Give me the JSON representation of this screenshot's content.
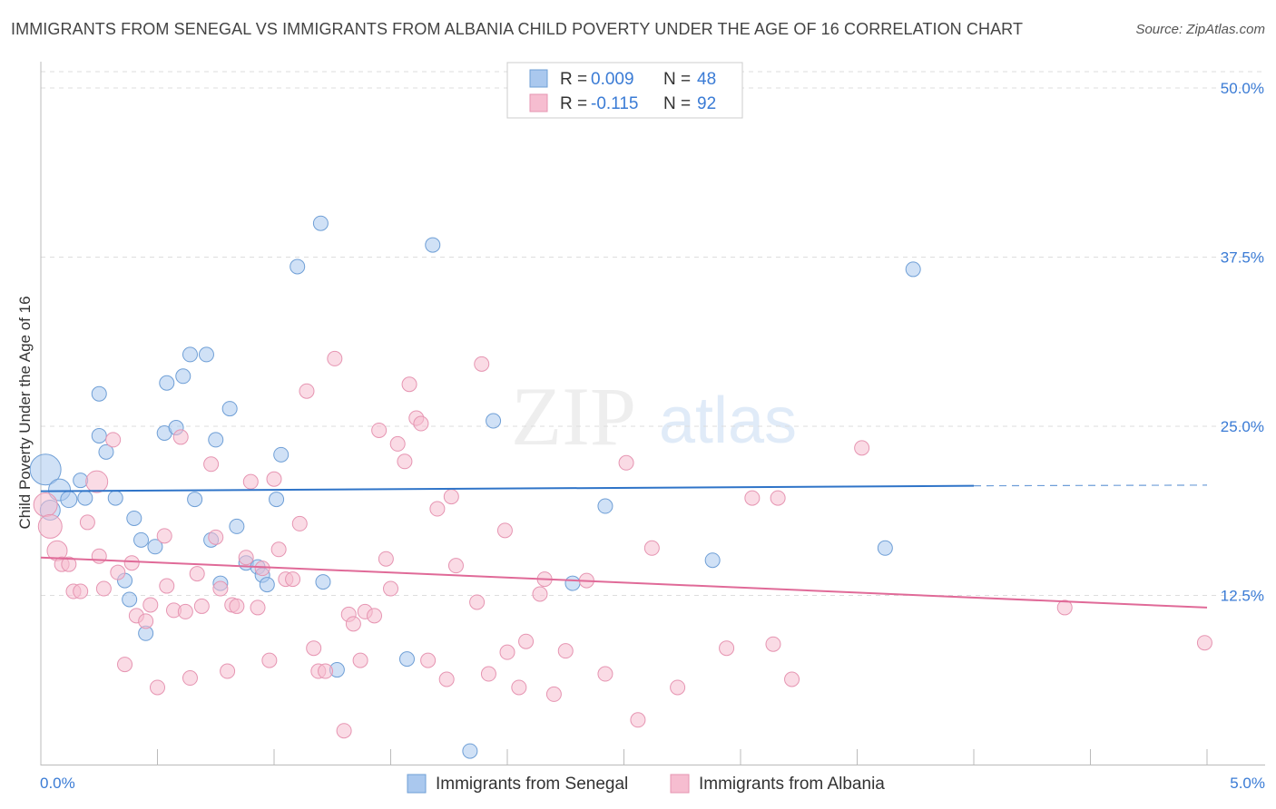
{
  "title": "IMMIGRANTS FROM SENEGAL VS IMMIGRANTS FROM ALBANIA CHILD POVERTY UNDER THE AGE OF 16 CORRELATION CHART",
  "source": "Source: ZipAtlas.com",
  "watermark": {
    "zip": "ZIP",
    "atlas": "atlas"
  },
  "colors": {
    "senegal_fill": "#aac8ee",
    "senegal_stroke": "#6f9fd6",
    "senegal_line": "#2f74c8",
    "albania_fill": "#f6bdd0",
    "albania_stroke": "#e695b2",
    "albania_line": "#e06a98",
    "tick_text": "#3a7bd5",
    "grid": "#dddddd"
  },
  "legend": [
    {
      "r_label": "R = ",
      "r_value": "0.009",
      "n_label": "N = ",
      "n_value": "48"
    },
    {
      "r_label": "R = ",
      "r_value": "-0.115",
      "n_label": "N = ",
      "n_value": "92"
    }
  ],
  "bottom_legend": [
    "Immigrants from Senegal",
    "Immigrants from Albania"
  ],
  "chart_data": {
    "type": "scatter",
    "title": "IMMIGRANTS FROM SENEGAL VS IMMIGRANTS FROM ALBANIA CHILD POVERTY UNDER THE AGE OF 16 CORRELATION CHART",
    "xlabel": "",
    "ylabel": "Child Poverty Under the Age of 16",
    "xlim": [
      0,
      5.0
    ],
    "ylim": [
      0,
      52
    ],
    "x_tick_labels": [
      "0.0%",
      "5.0%"
    ],
    "y_ticks": [
      12.5,
      25.0,
      37.5,
      50.0
    ],
    "y_tick_labels": [
      "12.5%",
      "25.0%",
      "37.5%",
      "50.0%"
    ],
    "grid": true,
    "legend_position": "top-center",
    "series": [
      {
        "name": "Immigrants from Senegal",
        "r": 0.009,
        "n": 48,
        "trend": {
          "x0": 0.0,
          "y0": 20.2,
          "x1": 4.0,
          "y1": 20.6,
          "dashed_to": 5.0,
          "dashed_y": 20.65
        },
        "points": [
          [
            0.02,
            21.8,
            17
          ],
          [
            0.08,
            20.3,
            12
          ],
          [
            0.04,
            18.8,
            11
          ],
          [
            0.12,
            19.6,
            9
          ],
          [
            0.17,
            21.0,
            8
          ],
          [
            0.19,
            19.7,
            8
          ],
          [
            0.25,
            24.3,
            8
          ],
          [
            0.28,
            23.1,
            8
          ],
          [
            0.32,
            19.7,
            8
          ],
          [
            0.25,
            27.4,
            8
          ],
          [
            0.36,
            13.6,
            8
          ],
          [
            0.38,
            12.2,
            8
          ],
          [
            0.4,
            18.2,
            8
          ],
          [
            0.43,
            16.6,
            8
          ],
          [
            0.45,
            9.7,
            8
          ],
          [
            0.49,
            16.1,
            8
          ],
          [
            0.53,
            24.5,
            8
          ],
          [
            0.54,
            28.2,
            8
          ],
          [
            0.58,
            24.9,
            8
          ],
          [
            0.61,
            28.7,
            8
          ],
          [
            0.64,
            30.3,
            8
          ],
          [
            0.66,
            19.6,
            8
          ],
          [
            0.71,
            30.3,
            8
          ],
          [
            0.73,
            16.6,
            8
          ],
          [
            0.75,
            24.0,
            8
          ],
          [
            0.77,
            13.4,
            8
          ],
          [
            0.81,
            26.3,
            8
          ],
          [
            0.84,
            17.6,
            8
          ],
          [
            0.88,
            14.9,
            8
          ],
          [
            0.93,
            14.6,
            8
          ],
          [
            0.95,
            14.0,
            8
          ],
          [
            0.97,
            13.3,
            8
          ],
          [
            1.01,
            19.6,
            8
          ],
          [
            1.03,
            22.9,
            8
          ],
          [
            1.1,
            36.8,
            8
          ],
          [
            1.2,
            40.0,
            8
          ],
          [
            1.21,
            13.5,
            8
          ],
          [
            1.27,
            7.0,
            8
          ],
          [
            1.57,
            7.8,
            8
          ],
          [
            1.68,
            38.4,
            8
          ],
          [
            1.84,
            1.0,
            8
          ],
          [
            1.94,
            25.4,
            8
          ],
          [
            2.28,
            13.4,
            8
          ],
          [
            2.42,
            19.1,
            8
          ],
          [
            2.88,
            15.1,
            8
          ],
          [
            3.62,
            16.0,
            8
          ],
          [
            3.74,
            36.6,
            8
          ]
        ]
      },
      {
        "name": "Immigrants from Albania",
        "r": -0.115,
        "n": 92,
        "trend": {
          "x0": 0.0,
          "y0": 15.3,
          "x1": 5.0,
          "y1": 11.6
        },
        "points": [
          [
            0.02,
            19.2,
            13
          ],
          [
            0.04,
            17.6,
            13
          ],
          [
            0.07,
            15.8,
            11
          ],
          [
            0.09,
            14.8,
            8
          ],
          [
            0.12,
            14.8,
            8
          ],
          [
            0.14,
            12.8,
            8
          ],
          [
            0.17,
            12.8,
            8
          ],
          [
            0.2,
            17.9,
            8
          ],
          [
            0.24,
            20.9,
            12
          ],
          [
            0.25,
            15.4,
            8
          ],
          [
            0.27,
            13.0,
            8
          ],
          [
            0.31,
            24.0,
            8
          ],
          [
            0.33,
            14.2,
            8
          ],
          [
            0.36,
            7.4,
            8
          ],
          [
            0.39,
            14.9,
            8
          ],
          [
            0.41,
            11.0,
            8
          ],
          [
            0.45,
            10.6,
            8
          ],
          [
            0.47,
            11.8,
            8
          ],
          [
            0.5,
            5.7,
            8
          ],
          [
            0.53,
            16.9,
            8
          ],
          [
            0.54,
            13.2,
            8
          ],
          [
            0.57,
            11.4,
            8
          ],
          [
            0.6,
            24.2,
            8
          ],
          [
            0.62,
            11.3,
            8
          ],
          [
            0.64,
            6.4,
            8
          ],
          [
            0.67,
            14.1,
            8
          ],
          [
            0.69,
            11.7,
            8
          ],
          [
            0.73,
            22.2,
            8
          ],
          [
            0.75,
            16.8,
            8
          ],
          [
            0.77,
            13.0,
            8
          ],
          [
            0.8,
            6.9,
            8
          ],
          [
            0.82,
            11.8,
            8
          ],
          [
            0.84,
            11.7,
            8
          ],
          [
            0.88,
            15.3,
            8
          ],
          [
            0.9,
            20.9,
            8
          ],
          [
            0.93,
            11.6,
            8
          ],
          [
            0.95,
            14.5,
            8
          ],
          [
            0.98,
            7.7,
            8
          ],
          [
            1.0,
            21.1,
            8
          ],
          [
            1.02,
            15.9,
            8
          ],
          [
            1.05,
            13.7,
            8
          ],
          [
            1.08,
            13.7,
            8
          ],
          [
            1.11,
            17.8,
            8
          ],
          [
            1.14,
            27.6,
            8
          ],
          [
            1.17,
            8.6,
            8
          ],
          [
            1.19,
            6.9,
            8
          ],
          [
            1.22,
            6.9,
            8
          ],
          [
            1.26,
            30.0,
            8
          ],
          [
            1.3,
            2.5,
            8
          ],
          [
            1.32,
            11.1,
            8
          ],
          [
            1.34,
            10.4,
            8
          ],
          [
            1.37,
            7.7,
            8
          ],
          [
            1.39,
            11.3,
            8
          ],
          [
            1.43,
            11.0,
            8
          ],
          [
            1.45,
            24.7,
            8
          ],
          [
            1.48,
            15.2,
            8
          ],
          [
            1.5,
            13.0,
            8
          ],
          [
            1.53,
            23.7,
            8
          ],
          [
            1.56,
            22.4,
            8
          ],
          [
            1.58,
            28.1,
            8
          ],
          [
            1.61,
            25.6,
            8
          ],
          [
            1.63,
            25.2,
            8
          ],
          [
            1.66,
            7.7,
            8
          ],
          [
            1.7,
            18.9,
            8
          ],
          [
            1.74,
            6.3,
            8
          ],
          [
            1.76,
            19.8,
            8
          ],
          [
            1.78,
            14.7,
            8
          ],
          [
            1.87,
            12.0,
            8
          ],
          [
            1.92,
            6.7,
            8
          ],
          [
            1.89,
            29.6,
            8
          ],
          [
            1.99,
            17.3,
            8
          ],
          [
            2.0,
            8.3,
            8
          ],
          [
            2.05,
            5.7,
            8
          ],
          [
            2.08,
            9.1,
            8
          ],
          [
            2.14,
            12.6,
            8
          ],
          [
            2.16,
            13.7,
            8
          ],
          [
            2.2,
            5.2,
            8
          ],
          [
            2.25,
            8.4,
            8
          ],
          [
            2.34,
            13.6,
            8
          ],
          [
            2.42,
            6.7,
            8
          ],
          [
            2.51,
            22.3,
            8
          ],
          [
            2.56,
            3.3,
            8
          ],
          [
            2.62,
            16.0,
            8
          ],
          [
            2.73,
            5.7,
            8
          ],
          [
            2.94,
            8.6,
            8
          ],
          [
            3.05,
            19.7,
            8
          ],
          [
            3.14,
            8.9,
            8
          ],
          [
            3.16,
            19.7,
            8
          ],
          [
            3.22,
            6.3,
            8
          ],
          [
            3.52,
            23.4,
            8
          ],
          [
            4.39,
            11.6,
            8
          ],
          [
            4.99,
            9.0,
            8
          ]
        ]
      }
    ]
  }
}
